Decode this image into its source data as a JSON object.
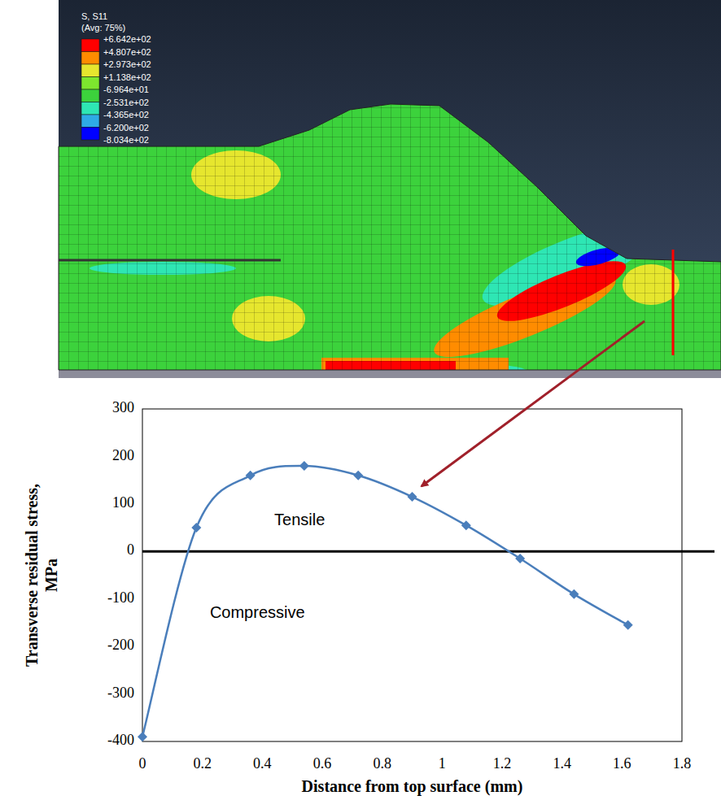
{
  "chart_data": {
    "type": "line",
    "xlabel": "Distance from top surface (mm)",
    "ylabel": "Transverse residual stress, MPa",
    "annotations": [
      "Tensile",
      "Compressive"
    ],
    "x": [
      0,
      0.18,
      0.36,
      0.54,
      0.72,
      0.9,
      1.08,
      1.26,
      1.44,
      1.62
    ],
    "series": [
      {
        "color": "#4a7ebb",
        "marker": "diamond",
        "line_style": "smooth",
        "values": [
          -390,
          50,
          160,
          180,
          160,
          115,
          55,
          -15,
          -90,
          -155
        ]
      }
    ],
    "xlim": [
      0,
      1.8
    ],
    "xticks": [
      0,
      0.2,
      0.4,
      0.6,
      0.8,
      1,
      1.2,
      1.4,
      1.6,
      1.8
    ],
    "ylim": [
      -400,
      300
    ],
    "yticks": [
      -400,
      -300,
      -200,
      -100,
      0,
      100,
      200,
      300
    ],
    "grid": false
  },
  "contour_plot": {
    "title": "S, S11",
    "subtitle": "(Avg: 75%)",
    "levels": [
      {
        "value": 664.2,
        "label": "+6.642e+02"
      },
      {
        "value": 480.7,
        "label": "+4.807e+02"
      },
      {
        "value": 297.3,
        "label": "+2.973e+02"
      },
      {
        "value": 113.8,
        "label": "+1.138e+02"
      },
      {
        "value": -69.64,
        "label": "-6.964e+01"
      },
      {
        "value": -253.1,
        "label": "-2.531e+02"
      },
      {
        "value": -436.5,
        "label": "-4.365e+02"
      },
      {
        "value": -620.0,
        "label": "-6.200e+02"
      },
      {
        "value": -803.4,
        "label": "-8.034e+02"
      }
    ],
    "colors": [
      "#ff0000",
      "#ff8c00",
      "#e6e62e",
      "#7de62e",
      "#3cd23c",
      "#2ee6b4",
      "#2eaae6",
      "#0000ff"
    ]
  }
}
